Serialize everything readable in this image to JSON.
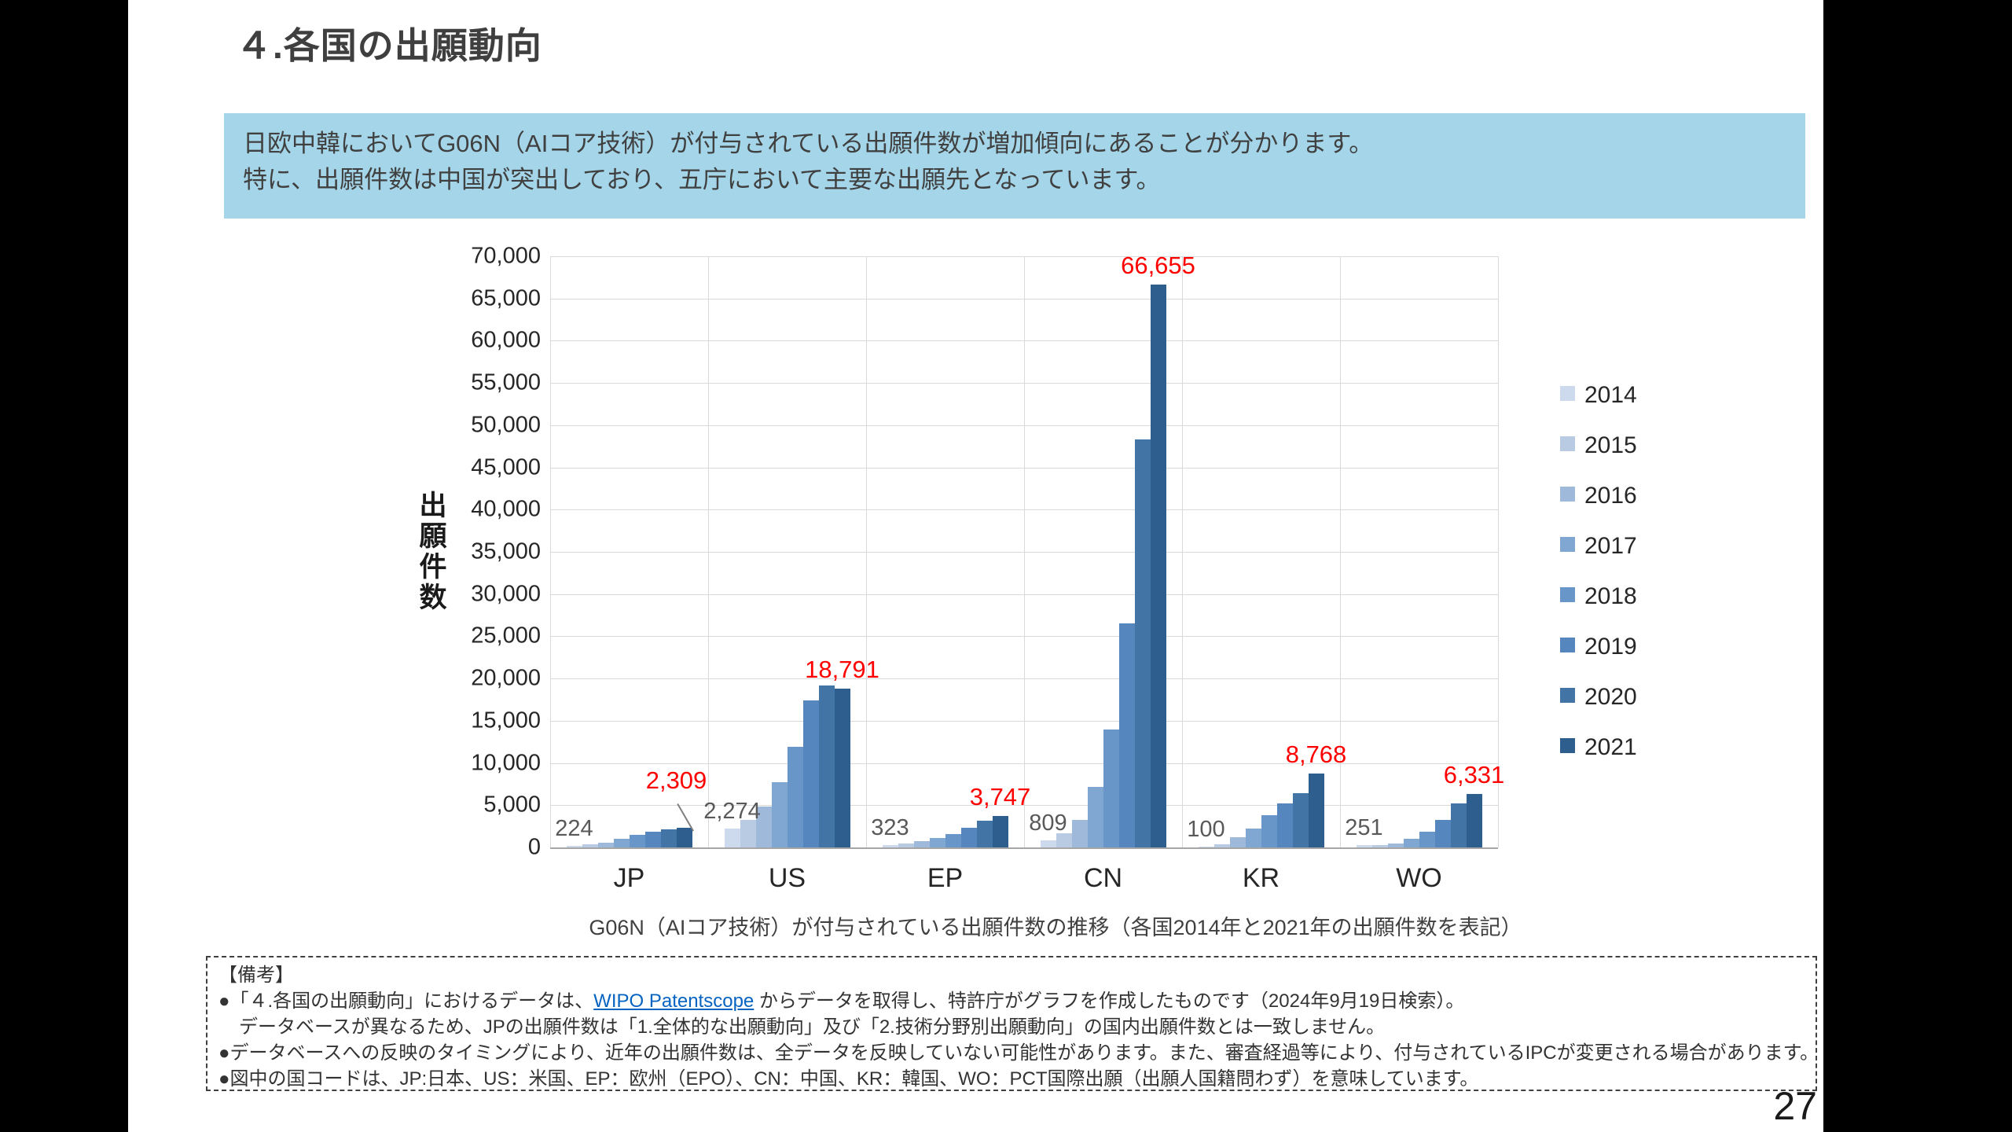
{
  "title": "４.各国の出願動向",
  "callout": {
    "line1": "日欧中韓においてG06N（AIコア技術）が付与されている出願件数が増加傾向にあることが分かります。",
    "line2": "特に、出願件数は中国が突出しており、五庁において主要な出願先となっています。"
  },
  "chart_data": {
    "type": "bar",
    "title": "",
    "ylabel": "出願件数",
    "xlabel": "",
    "ylim": [
      0,
      70000
    ],
    "ytick_step": 5000,
    "grid": true,
    "legend_position": "right",
    "categories": [
      "JP",
      "US",
      "EP",
      "CN",
      "KR",
      "WO"
    ],
    "series": [
      {
        "name": "2014",
        "color": "#cdd9ec",
        "values": [
          224,
          2274,
          323,
          809,
          100,
          251
        ]
      },
      {
        "name": "2015",
        "color": "#b9cae3",
        "values": [
          350,
          3300,
          450,
          1700,
          400,
          300
        ]
      },
      {
        "name": "2016",
        "color": "#9fb9db",
        "values": [
          600,
          4800,
          700,
          3300,
          1200,
          500
        ]
      },
      {
        "name": "2017",
        "color": "#7fa7d1",
        "values": [
          1000,
          7700,
          1100,
          7200,
          2200,
          1000
        ]
      },
      {
        "name": "2018",
        "color": "#6896c8",
        "values": [
          1450,
          11900,
          1600,
          14000,
          3800,
          1900
        ]
      },
      {
        "name": "2019",
        "color": "#5586bd",
        "values": [
          1900,
          17400,
          2300,
          26500,
          5200,
          3300
        ]
      },
      {
        "name": "2020",
        "color": "#4374a6",
        "values": [
          2150,
          19200,
          3200,
          48300,
          6400,
          5200
        ]
      },
      {
        "name": "2021",
        "color": "#2e5e8e",
        "values": [
          2309,
          18791,
          3747,
          66655,
          8768,
          6331
        ]
      }
    ],
    "data_labels_first_year": [
      "224",
      "2,274",
      "323",
      "809",
      "100",
      "251"
    ],
    "data_labels_last_year": [
      "2,309",
      "18,791",
      "3,747",
      "66,655",
      "8,768",
      "6,331"
    ],
    "label_color_first_year": "#595959",
    "label_color_last_year": "#ff0000",
    "note": "各国2014年と2021年の出願件数を表記"
  },
  "chart_caption": "G06N（AIコア技術）が付与されている出願件数の推移（各国2014年と2021年の出願件数を表記）",
  "notes": {
    "heading": "【備考】",
    "line2_pre": "●「４.各国の出願動向」におけるデータは、",
    "line2_link": "WIPO Patentscope",
    "line2_post": " からデータを取得し、特許庁がグラフを作成したものです（2024年9月19日検索）。",
    "line3": "データベースが異なるため、JPの出願件数は「1.全体的な出願動向」及び「2.技術分野別出願動向」の国内出願件数とは一致しません。",
    "line4": "●データベースへの反映のタイミングにより、近年の出願件数は、全データを反映していない可能性があります。また、審査経過等により、付与されているIPCが変更される場合があります。",
    "line5": "●図中の国コードは、JP:日本、US：米国、EP：欧州（EPO）、CN：中国、KR：韓国、WO：PCT国際出願（出願人国籍問わず）を意味しています。"
  },
  "page_number": "27"
}
